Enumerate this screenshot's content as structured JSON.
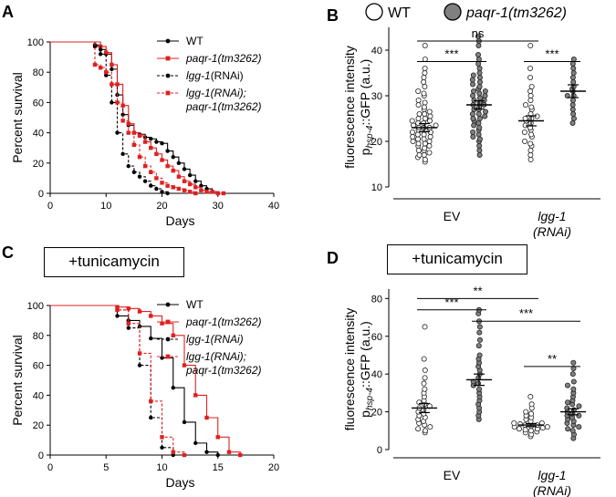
{
  "figure": {
    "panels": {
      "A": "A",
      "B": "B",
      "C": "C",
      "D": "D"
    },
    "top_legend": {
      "wt": "WT",
      "mut": "paqr-1(tm3262)",
      "wt_color": "#ffffff",
      "mut_color": "#808080"
    },
    "tunicamycin_label": "+tunicamycin"
  },
  "chart_data": [
    {
      "id": "A",
      "type": "line",
      "title": "",
      "xlabel": "Days",
      "ylabel": "Percent survival",
      "xlim": [
        0,
        40
      ],
      "ylim": [
        0,
        100
      ],
      "xticks": [
        "0",
        "10",
        "20",
        "30",
        "40"
      ],
      "yticks": [
        "0",
        "20",
        "40",
        "60",
        "80",
        "100"
      ],
      "legend": [
        {
          "name": "WT",
          "text": "WT"
        },
        {
          "name": "paqr1",
          "text": "paqr-1(tm3262)"
        },
        {
          "name": "lgg1",
          "text": "lgg-1",
          "suffix": "(RNAi)"
        },
        {
          "name": "lgg1paqr1",
          "text": "lgg-1(RNAi);",
          "line2": "paqr-1(tm3262)"
        }
      ],
      "series": [
        {
          "name": "WT",
          "color": "#000000",
          "dash": false,
          "x": [
            0,
            8,
            9,
            10,
            11,
            12,
            13,
            14,
            15,
            16,
            17,
            18,
            19,
            20,
            21,
            22,
            23,
            24,
            25,
            26,
            27,
            28,
            29,
            30
          ],
          "y": [
            100,
            98,
            95,
            92,
            82,
            65,
            52,
            45,
            40,
            39,
            37,
            36,
            34,
            33,
            28,
            24,
            20,
            16,
            12,
            8,
            5,
            3,
            1,
            0
          ]
        },
        {
          "name": "paqr1",
          "color": "#e02020",
          "dash": false,
          "x": [
            0,
            9,
            10,
            11,
            12,
            13,
            14,
            15,
            16,
            17,
            18,
            19,
            20,
            21,
            22,
            23,
            24,
            25,
            26,
            27,
            28,
            29,
            30,
            31
          ],
          "y": [
            100,
            97,
            93,
            85,
            72,
            58,
            46,
            40,
            38,
            34,
            30,
            26,
            22,
            18,
            15,
            11,
            8,
            6,
            4,
            2,
            1,
            1,
            0,
            0
          ]
        },
        {
          "name": "lgg1",
          "color": "#000000",
          "dash": true,
          "x": [
            0,
            8,
            9,
            10,
            11,
            12,
            13,
            14,
            15,
            16,
            17,
            18,
            19,
            20,
            21
          ],
          "y": [
            100,
            97,
            92,
            78,
            60,
            40,
            26,
            18,
            14,
            11,
            8,
            5,
            3,
            1,
            0
          ]
        },
        {
          "name": "lgg1paqr1",
          "color": "#e02020",
          "dash": true,
          "x": [
            0,
            8,
            9,
            10,
            11,
            12,
            13,
            14,
            15,
            16,
            17,
            18,
            19,
            20,
            21,
            22,
            23,
            24,
            25,
            26
          ],
          "y": [
            100,
            85,
            83,
            80,
            72,
            60,
            48,
            40,
            32,
            24,
            18,
            14,
            10,
            7,
            5,
            4,
            3,
            2,
            1,
            0
          ]
        }
      ]
    },
    {
      "id": "B",
      "type": "scatter",
      "ylabel": "fluorescence intensity",
      "ylabel_p": "p",
      "ylabel_sub": "hsp-4",
      "ylabel_tail": "::GFP (a.u.)",
      "ylim": [
        10,
        45
      ],
      "yticks": [
        "10",
        "20",
        "30",
        "40"
      ],
      "group_labels": [
        {
          "text": "EV",
          "italic": false
        },
        {
          "text": "lgg-1",
          "line2": "(RNAi)",
          "italic": true
        }
      ],
      "groups": [
        {
          "genotype": "WT",
          "condition": "EV",
          "mean": 23,
          "sem": 0.9,
          "fill": "#ffffff",
          "values": [
            15.5,
            16,
            16.5,
            17,
            17,
            17.5,
            18,
            18,
            18.5,
            19,
            19,
            19.5,
            19.5,
            20,
            20,
            20.5,
            20.5,
            21,
            21,
            21.5,
            21.5,
            22,
            22,
            22.5,
            22.5,
            23,
            23,
            23,
            23.5,
            23.5,
            24,
            24,
            24.5,
            24.5,
            25,
            25,
            25.5,
            26,
            26,
            26.5,
            27,
            27.5,
            28,
            28.5,
            29,
            30,
            30.5,
            31,
            32,
            33,
            34,
            35,
            36,
            38,
            41
          ]
        },
        {
          "genotype": "paqr-1",
          "condition": "EV",
          "mean": 28,
          "sem": 0.9,
          "fill": "#808080",
          "values": [
            17,
            18,
            19,
            20,
            20.5,
            21,
            21.5,
            22,
            22.5,
            23,
            23.5,
            24,
            24.5,
            25,
            25,
            25.5,
            26,
            26,
            26.5,
            27,
            27,
            27.5,
            28,
            28,
            28.5,
            29,
            29,
            29.5,
            30,
            30,
            30.5,
            31,
            31,
            31.5,
            32,
            32.5,
            33,
            33.5,
            34,
            34.5,
            35,
            36,
            37,
            38,
            39,
            41,
            42,
            43
          ]
        },
        {
          "genotype": "WT",
          "condition": "lgg-1(RNAi)",
          "mean": 24.5,
          "sem": 1.1,
          "fill": "#ffffff",
          "values": [
            16,
            17,
            18,
            19,
            19.5,
            20,
            21,
            21.5,
            22,
            22.5,
            23,
            23.5,
            24,
            24.5,
            25,
            25,
            25.5,
            26,
            27,
            27.5,
            28,
            29,
            30,
            31,
            32,
            34,
            36,
            41
          ]
        },
        {
          "genotype": "paqr-1",
          "condition": "lgg-1(RNAi)",
          "mean": 31,
          "sem": 1.4,
          "fill": "#808080",
          "values": [
            24,
            25,
            26,
            27,
            28,
            29,
            30,
            30,
            31,
            31.5,
            32,
            33,
            34,
            35,
            36,
            37,
            38
          ]
        }
      ],
      "comparisons": [
        {
          "label": "***",
          "from": 0,
          "to": 1,
          "y": 37.5
        },
        {
          "label": "ns",
          "from": 0,
          "to": 2,
          "y": 42
        },
        {
          "label": "***",
          "from": 2,
          "to": 3,
          "y": 37.5
        }
      ]
    },
    {
      "id": "C",
      "type": "line",
      "xlabel": "Days",
      "ylabel": "Percent survival",
      "xlim": [
        0,
        20
      ],
      "ylim": [
        0,
        100
      ],
      "xticks": [
        "0",
        "5",
        "10",
        "15",
        "20"
      ],
      "yticks": [
        "0",
        "20",
        "40",
        "60",
        "80",
        "100"
      ],
      "legend": [
        {
          "name": "WT",
          "text": "WT"
        },
        {
          "name": "paqr1",
          "text": "paqr-1(tm3262)"
        },
        {
          "name": "lgg1",
          "text": "lgg-1(RNAi)"
        },
        {
          "name": "lgg1paqr1",
          "text": "lgg-1(RNAi);",
          "line2": "paqr-1(tm3262)"
        }
      ],
      "series": [
        {
          "name": "WT",
          "color": "#000000",
          "dash": false,
          "x": [
            0,
            6,
            7,
            8,
            9,
            10,
            11,
            12,
            13,
            14,
            15
          ],
          "y": [
            100,
            93,
            90,
            86,
            78,
            65,
            45,
            22,
            8,
            2,
            0
          ]
        },
        {
          "name": "paqr1",
          "color": "#e02020",
          "dash": false,
          "x": [
            0,
            6,
            7,
            8,
            9,
            10,
            11,
            12,
            13,
            14,
            15,
            16,
            17
          ],
          "y": [
            100,
            99,
            98,
            96,
            93,
            88,
            80,
            60,
            40,
            25,
            12,
            2,
            0
          ]
        },
        {
          "name": "lgg1",
          "color": "#000000",
          "dash": true,
          "x": [
            0,
            6,
            7,
            8,
            9,
            10,
            11
          ],
          "y": [
            100,
            97,
            85,
            60,
            25,
            5,
            0
          ]
        },
        {
          "name": "lgg1paqr1",
          "color": "#e02020",
          "dash": true,
          "x": [
            0,
            6,
            7,
            8,
            9,
            10,
            11,
            12
          ],
          "y": [
            100,
            97,
            88,
            68,
            36,
            12,
            2,
            0
          ]
        }
      ]
    },
    {
      "id": "D",
      "type": "scatter",
      "ylabel": "fluorescence intensity",
      "ylabel_p": "p",
      "ylabel_sub": "hsp-4",
      "ylabel_tail": "::GFP (a.u.)",
      "ylim": [
        0,
        85
      ],
      "yticks": [
        "0",
        "20",
        "40",
        "60",
        "80"
      ],
      "group_labels": [
        {
          "text": "EV",
          "italic": false
        },
        {
          "text": "lgg-1",
          "line2": "(RNAi)",
          "italic": true
        }
      ],
      "groups": [
        {
          "genotype": "WT",
          "condition": "EV",
          "mean": 22,
          "sem": 2.4,
          "fill": "#ffffff",
          "values": [
            9,
            10,
            11,
            12,
            13,
            14,
            15,
            16,
            17,
            18,
            19,
            20,
            21,
            22,
            23,
            24,
            25,
            26,
            28,
            30,
            32,
            35,
            38,
            42,
            48,
            65
          ]
        },
        {
          "genotype": "paqr-1",
          "condition": "EV",
          "mean": 37,
          "sem": 3.0,
          "fill": "#808080",
          "values": [
            16,
            18,
            20,
            22,
            24,
            26,
            28,
            30,
            32,
            34,
            35,
            36,
            38,
            40,
            42,
            44,
            46,
            48,
            50,
            55,
            58,
            62,
            65,
            68,
            72,
            74
          ]
        },
        {
          "genotype": "WT",
          "condition": "lgg-1(RNAi)",
          "mean": 13,
          "sem": 0.8,
          "fill": "#ffffff",
          "values": [
            7,
            8,
            9,
            9.5,
            10,
            10.5,
            11,
            11,
            11.5,
            12,
            12,
            12.5,
            13,
            13,
            13.5,
            14,
            14,
            15,
            16,
            17,
            18,
            19,
            20,
            22,
            24,
            28
          ]
        },
        {
          "genotype": "paqr-1",
          "condition": "lgg-1(RNAi)",
          "mean": 20,
          "sem": 1.6,
          "fill": "#808080",
          "values": [
            6,
            8,
            10,
            11,
            12,
            13,
            14,
            15,
            16,
            17,
            18,
            18,
            19,
            20,
            21,
            22,
            23,
            24,
            25,
            26,
            28,
            30,
            32,
            34,
            36,
            40,
            43,
            46
          ]
        }
      ],
      "comparisons": [
        {
          "label": "**",
          "from": 0,
          "to": 2,
          "y": 80
        },
        {
          "label": "***",
          "from": 0,
          "to": 1,
          "y": 74
        },
        {
          "label": "***",
          "from": 1,
          "to": 3,
          "y": 68
        },
        {
          "label": "**",
          "from": 2,
          "to": 3,
          "y": 44
        }
      ]
    }
  ]
}
